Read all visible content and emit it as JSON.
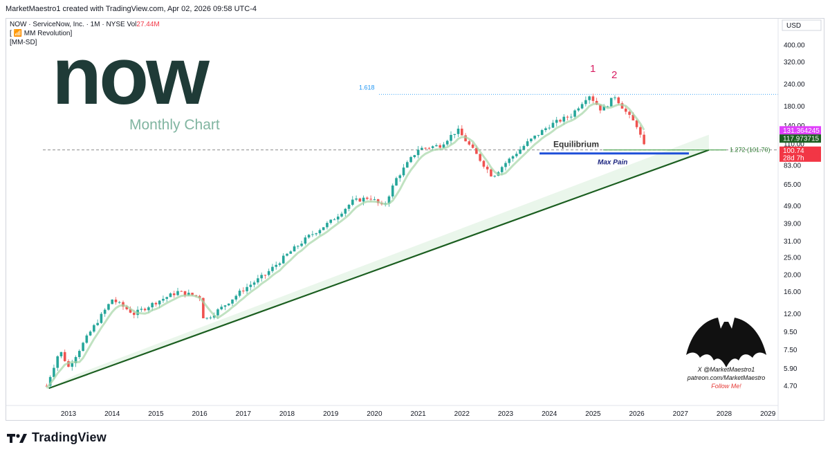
{
  "caption": "MarketMaestro1 created with TradingView.com, Apr 02, 2026 09:58 UTC-4",
  "legend": {
    "symbol_line": "NOW · ServiceNow, Inc. · 1M · NYSE",
    "vol_label": "Vol",
    "vol_value": "27.44M",
    "indicator1": "[ 📶 MM Revolution]",
    "indicator2": "[MM-SD]"
  },
  "logo": {
    "word": "now"
  },
  "footer_brand": "TradingView",
  "watermark": {
    "line1": "X @MarketMaestro1",
    "line2": "patreon.com/MarketMaestro",
    "line3": "Follow Me!"
  },
  "colors": {
    "up": "#26a69a",
    "down": "#ef5350",
    "trendline": "#1b5e20",
    "logo_dark": "#1f3b37",
    "logo_green": "#81b5a1",
    "accent_red": "#e53935",
    "fib_blue": "#2196f3"
  },
  "chart_data": {
    "type": "candlestick",
    "title": "Monthly Chart",
    "currency": "USD",
    "y_scale": "log",
    "ylim": [
      4.2,
      470
    ],
    "x_ticks": [
      "2013",
      "2014",
      "2015",
      "2016",
      "2017",
      "2018",
      "2019",
      "2020",
      "2021",
      "2022",
      "2023",
      "2024",
      "2025",
      "2026",
      "2027",
      "2028",
      "2029"
    ],
    "y_ticks": [
      "400.00",
      "320.00",
      "240.00",
      "180.00",
      "140.00",
      "110.00",
      "83.00",
      "65.00",
      "49.00",
      "39.00",
      "31.00",
      "25.00",
      "20.00",
      "16.00",
      "12.00",
      "9.50",
      "7.50",
      "5.90",
      "4.70"
    ],
    "price_path": [
      [
        2012.5,
        4.7
      ],
      [
        2012.8,
        7.5
      ],
      [
        2013.0,
        6.0
      ],
      [
        2013.5,
        9.5
      ],
      [
        2014.0,
        14.5
      ],
      [
        2014.5,
        12.0
      ],
      [
        2015.0,
        14.0
      ],
      [
        2015.5,
        16.0
      ],
      [
        2016.0,
        15.0
      ],
      [
        2016.1,
        11.0
      ],
      [
        2016.5,
        13.0
      ],
      [
        2017.0,
        16.5
      ],
      [
        2017.5,
        20.0
      ],
      [
        2018.0,
        26.0
      ],
      [
        2018.5,
        33.0
      ],
      [
        2019.0,
        40.0
      ],
      [
        2019.5,
        52.0
      ],
      [
        2019.9,
        55.0
      ],
      [
        2020.2,
        48.0
      ],
      [
        2020.5,
        70.0
      ],
      [
        2021.0,
        103.0
      ],
      [
        2021.5,
        108.0
      ],
      [
        2021.9,
        132.0
      ],
      [
        2022.3,
        98.0
      ],
      [
        2022.7,
        72.0
      ],
      [
        2023.0,
        86.0
      ],
      [
        2023.5,
        112.0
      ],
      [
        2024.0,
        140.0
      ],
      [
        2024.5,
        160.0
      ],
      [
        2024.9,
        210.0
      ],
      [
        2025.2,
        170.0
      ],
      [
        2025.5,
        205.0
      ],
      [
        2025.8,
        160.0
      ],
      [
        2026.0,
        140.0
      ],
      [
        2026.2,
        101.0
      ]
    ],
    "trendline": [
      [
        2012.55,
        4.55
      ],
      [
        2027.65,
        101.7
      ]
    ],
    "annotations": {
      "fib_1618": {
        "label": "1.618",
        "price": 210.0
      },
      "fib_1272": {
        "label": "1.272 (101.70)",
        "price": 101.7
      },
      "wave1": "1",
      "wave2": "2",
      "equilibrium": "Equilibrium",
      "max_pain": "Max Pain"
    },
    "price_tags": [
      {
        "value": "131.364245",
        "price": 131.36,
        "color": "#e040fb"
      },
      {
        "value": "117.973715",
        "price": 117.97,
        "color": "#1b5e20"
      },
      {
        "value": "100.74",
        "price": 100.74,
        "color": "#f23645"
      },
      {
        "value": "28d 7h",
        "price": 92.0,
        "color": "#f23645"
      }
    ]
  }
}
